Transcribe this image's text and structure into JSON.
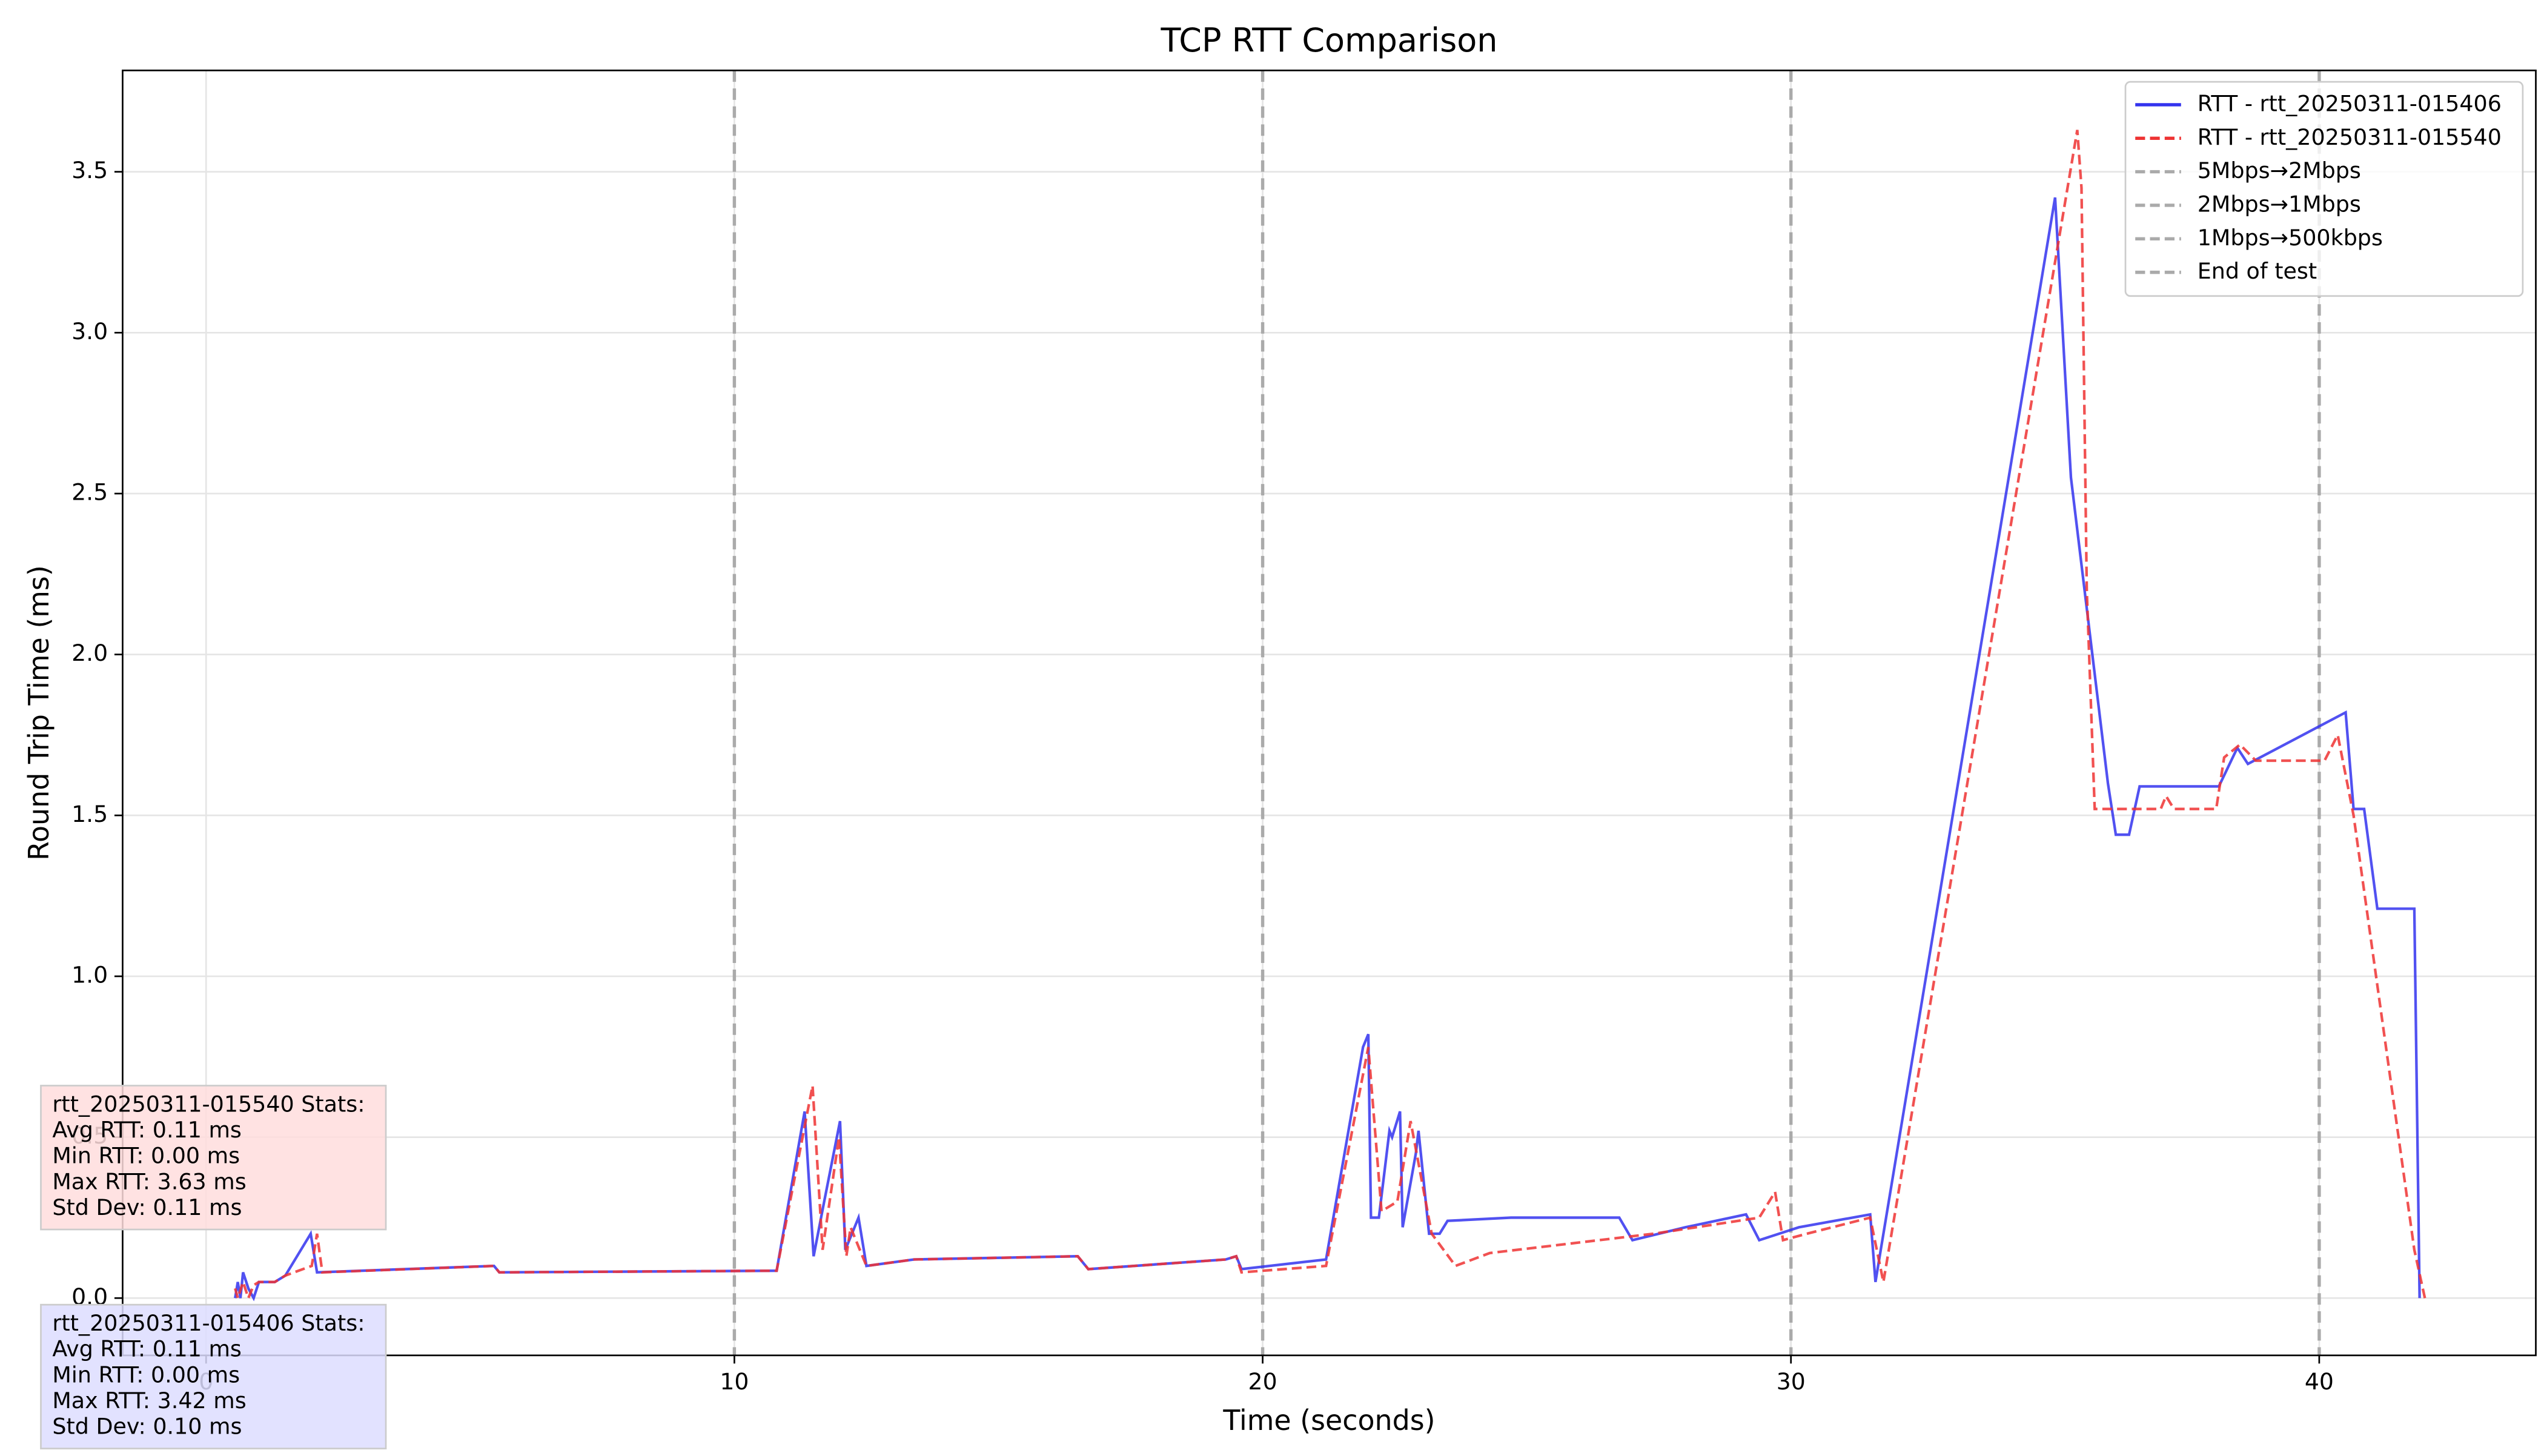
{
  "chart_data": {
    "type": "line",
    "title": "TCP RTT Comparison",
    "x_label": "Time (seconds)",
    "y_label": "Round Trip Time (ms)",
    "xlim": [
      -1.58,
      44.1
    ],
    "ylim": [
      -0.178,
      3.815
    ],
    "xticks": [
      0,
      10,
      20,
      30,
      40
    ],
    "yticks": [
      {
        "value": 0,
        "label": "0.0"
      },
      0.5,
      {
        "value": 1,
        "label": "1.0"
      },
      1.5,
      {
        "value": 2,
        "label": "2.0"
      },
      2.5,
      {
        "value": 3,
        "label": "3.0"
      },
      3.5
    ],
    "grid": true,
    "legend": "upper right",
    "series": [
      {
        "name": "RTT - rtt_20250311-015406",
        "color": "#3333ee",
        "style": "solid",
        "x": [
          0.55,
          0.6,
          0.65,
          0.7,
          0.8,
          0.9,
          1.0,
          1.3,
          1.5,
          1.98,
          2.1,
          5.45,
          5.55,
          10.8,
          11.33,
          11.5,
          11.7,
          12.0,
          12.1,
          12.35,
          12.5,
          13.4,
          16.5,
          16.7,
          19.3,
          19.5,
          19.6,
          21.2,
          21.9,
          22.0,
          22.05,
          22.2,
          22.4,
          22.45,
          22.6,
          22.65,
          22.9,
          22.95,
          23.15,
          23.35,
          23.5,
          24.7,
          26.75,
          27.0,
          28.0,
          29.15,
          29.4,
          30.15,
          31.5,
          31.6,
          31.7,
          35.0,
          35.3,
          36.0,
          36.15,
          36.4,
          36.6,
          38.1,
          38.45,
          38.65,
          40.5,
          40.65,
          40.85,
          41.1,
          41.8,
          41.9
        ],
        "values": [
          0.0,
          0.05,
          0.0,
          0.08,
          0.03,
          0.0,
          0.05,
          0.05,
          0.07,
          0.2,
          0.08,
          0.1,
          0.08,
          0.085,
          0.58,
          0.13,
          0.3,
          0.55,
          0.15,
          0.25,
          0.1,
          0.12,
          0.13,
          0.09,
          0.12,
          0.13,
          0.09,
          0.12,
          0.78,
          0.82,
          0.25,
          0.25,
          0.52,
          0.5,
          0.58,
          0.22,
          0.45,
          0.52,
          0.2,
          0.2,
          0.24,
          0.25,
          0.25,
          0.18,
          0.22,
          0.26,
          0.18,
          0.22,
          0.26,
          0.05,
          0.15,
          3.42,
          2.55,
          1.6,
          1.44,
          1.44,
          1.59,
          1.59,
          1.71,
          1.66,
          1.82,
          1.52,
          1.52,
          1.21,
          1.21,
          0.0
        ]
      },
      {
        "name": "RTT - rtt_20250311-015540",
        "color": "#ee3333",
        "style": "dashed",
        "x": [
          0.55,
          0.6,
          0.7,
          0.8,
          0.9,
          1.0,
          1.3,
          1.5,
          2.0,
          2.1,
          2.2,
          5.45,
          5.55,
          10.8,
          11.48,
          11.67,
          11.98,
          12.12,
          12.2,
          12.5,
          13.4,
          16.5,
          16.7,
          19.3,
          19.5,
          19.6,
          21.2,
          22.0,
          22.25,
          22.55,
          22.8,
          23.2,
          23.65,
          24.3,
          27.4,
          29.4,
          29.7,
          29.85,
          30.3,
          31.5,
          31.75,
          35.42,
          35.5,
          35.6,
          35.75,
          37.0,
          37.1,
          37.25,
          38.05,
          38.2,
          38.5,
          38.8,
          40.1,
          40.35,
          40.65,
          41.8,
          42.0
        ],
        "values": [
          0.03,
          0.0,
          0.05,
          0.0,
          0.04,
          0.05,
          0.05,
          0.07,
          0.1,
          0.2,
          0.08,
          0.1,
          0.08,
          0.085,
          0.66,
          0.15,
          0.5,
          0.13,
          0.22,
          0.1,
          0.12,
          0.13,
          0.09,
          0.12,
          0.13,
          0.08,
          0.1,
          0.78,
          0.27,
          0.3,
          0.55,
          0.2,
          0.1,
          0.14,
          0.2,
          0.25,
          0.33,
          0.18,
          0.2,
          0.25,
          0.05,
          3.63,
          3.45,
          2.2,
          1.52,
          1.52,
          1.56,
          1.52,
          1.52,
          1.68,
          1.72,
          1.67,
          1.67,
          1.75,
          1.5,
          0.15,
          0.0
        ]
      }
    ],
    "vlines": [
      {
        "name": "5Mbps→2Mbps",
        "x": 10
      },
      {
        "name": "2Mbps→1Mbps",
        "x": 20
      },
      {
        "name": "1Mbps→500kbps",
        "x": 30
      },
      {
        "name": "End of test",
        "x": 40
      }
    ],
    "vline_color": "#aaaaaa",
    "stats_boxes": [
      {
        "lines": [
          "rtt_20250311-015540 Stats:",
          "Avg RTT: 0.11 ms",
          "Min RTT: 0.00 ms",
          "Max RTT: 3.63 ms",
          "Std Dev: 0.11 ms"
        ],
        "color": "#ffdddd"
      },
      {
        "lines": [
          "rtt_20250311-015406 Stats:",
          "Avg RTT: 0.11 ms",
          "Min RTT: 0.00 ms",
          "Max RTT: 3.42 ms",
          "Std Dev: 0.10 ms"
        ],
        "color": "#ddddff"
      }
    ]
  }
}
